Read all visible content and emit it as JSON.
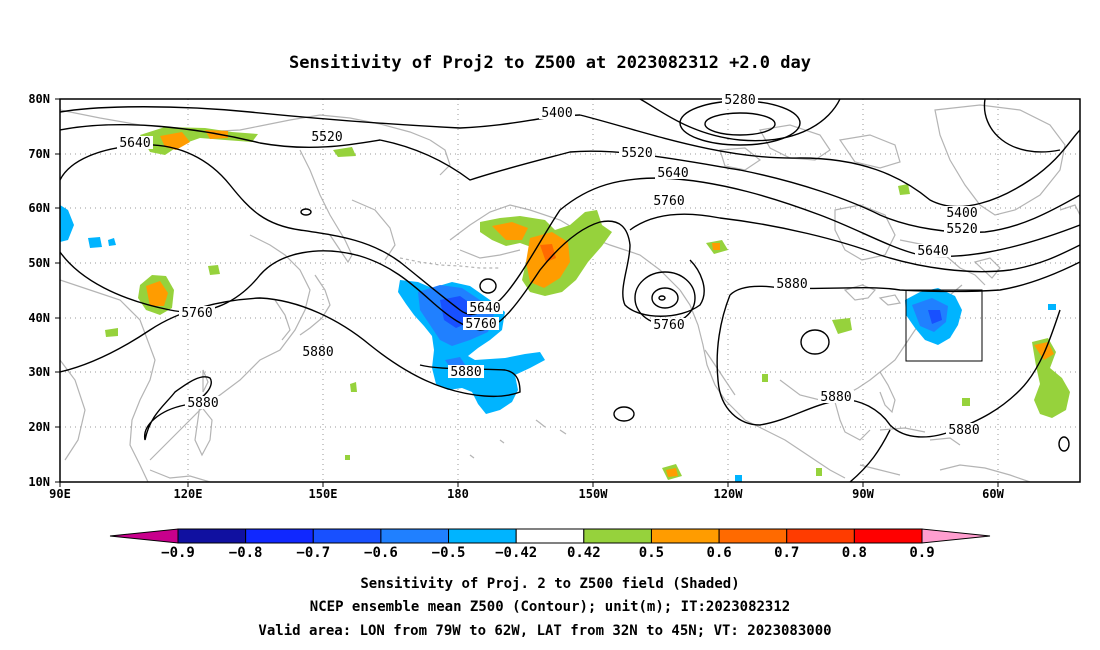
{
  "title": "Sensitivity of Proj2 to Z500 at 2023082312 +2.0 day",
  "map": {
    "lat_ticks": [
      "80N",
      "70N",
      "60N",
      "50N",
      "40N",
      "30N",
      "20N",
      "10N"
    ],
    "lon_ticks": [
      "90E",
      "120E",
      "150E",
      "180",
      "150W",
      "120W",
      "90W",
      "60W"
    ],
    "lon_range": [
      "90E",
      "40W"
    ],
    "lat_range": [
      "10N",
      "80N"
    ],
    "grid": "dotted",
    "valid_box": {
      "lon": [
        "79W",
        "62W"
      ],
      "lat": [
        "32N",
        "45N"
      ]
    }
  },
  "contours": {
    "unit": "m",
    "labels": [
      {
        "text": "5640",
        "region": "west Siberia 70N"
      },
      {
        "text": "5520",
        "region": "East Siberia 70N"
      },
      {
        "text": "5400",
        "region": "Arctic 75N"
      },
      {
        "text": "5280",
        "region": "Arctic low 78N"
      },
      {
        "text": "5520",
        "region": "Bering 70N"
      },
      {
        "text": "5640",
        "region": "Alaska 63N"
      },
      {
        "text": "5760",
        "region": "Gulf of Alaska 57N"
      },
      {
        "text": "5400",
        "region": "Greenland 60N"
      },
      {
        "text": "5520",
        "region": "Labrador 57N"
      },
      {
        "text": "5640",
        "region": "Labrador 53N"
      },
      {
        "text": "5880",
        "region": "North America 43N"
      },
      {
        "text": "5760",
        "region": "Pacific low 40N"
      },
      {
        "text": "5640",
        "region": "Dateline trough 42N"
      },
      {
        "text": "5760",
        "region": "Dateline trough 40N"
      },
      {
        "text": "5880",
        "region": "Central Pacific 31N"
      },
      {
        "text": "5760",
        "region": "China 40N"
      },
      {
        "text": "5880",
        "region": "Japan 35N"
      },
      {
        "text": "5880",
        "region": "South China Sea 22N"
      },
      {
        "text": "5880",
        "region": "Gulf of Mexico 22N"
      },
      {
        "text": "5880",
        "region": "Caribbean 20N"
      }
    ]
  },
  "colorbar": {
    "colors": [
      "#c8008c",
      "#1010a0",
      "#1028ff",
      "#1850ff",
      "#2080ff",
      "#00b4ff",
      "#ffffff",
      "#96d23c",
      "#ff9c00",
      "#ff6a00",
      "#ff3c00",
      "#ff0000",
      "#ff9ecf"
    ],
    "tick_labels": [
      "-0.9",
      "-0.8",
      "-0.7",
      "-0.6",
      "-0.5",
      "-0.42",
      "0.42",
      "0.5",
      "0.6",
      "0.7",
      "0.8",
      "0.9"
    ]
  },
  "caption": {
    "line1": "Sensitivity of Proj. 2 to Z500 field (Shaded)",
    "line2": "NCEP ensemble mean Z500 (Contour); unit(m); IT:2023082312",
    "line3": "Valid area: LON from 79W to 62W, LAT from 32N to 45N; VT: 2023083000"
  },
  "colors": {
    "coast": "#b4b4b4",
    "contour": "#000000",
    "green": "#96d23c",
    "orange": "#ff9c00",
    "cyan": "#00b4ff",
    "blue": "#2080ff"
  }
}
